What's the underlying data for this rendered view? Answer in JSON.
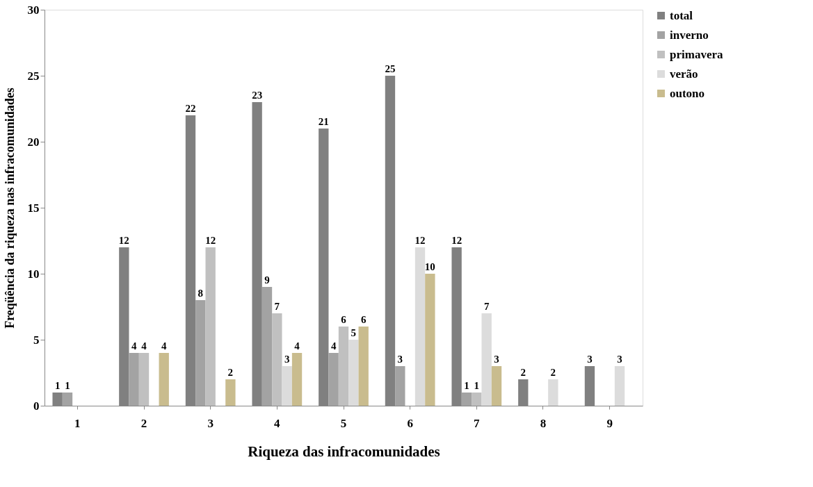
{
  "chart_data": {
    "type": "bar",
    "xlabel": "Riqueza das infracomunidades",
    "ylabel": "Freqüência da riqueza nas infracomunidades",
    "categories": [
      "1",
      "2",
      "3",
      "4",
      "5",
      "6",
      "7",
      "8",
      "9"
    ],
    "series": [
      {
        "name": "total",
        "color": "#808080",
        "values": [
          1,
          12,
          22,
          23,
          21,
          25,
          12,
          2,
          3
        ]
      },
      {
        "name": "inverno",
        "color": "#a3a3a3",
        "values": [
          1,
          4,
          8,
          9,
          4,
          3,
          1,
          null,
          null
        ]
      },
      {
        "name": "primavera",
        "color": "#c0c0c0",
        "values": [
          null,
          4,
          12,
          7,
          6,
          null,
          1,
          null,
          null
        ]
      },
      {
        "name": "verão",
        "color": "#dcdcdc",
        "values": [
          null,
          null,
          null,
          3,
          5,
          12,
          7,
          2,
          3
        ]
      },
      {
        "name": "outono",
        "color": "#c9bc8e",
        "values": [
          null,
          4,
          2,
          4,
          6,
          10,
          3,
          null,
          null
        ]
      }
    ],
    "ylim": [
      0,
      30
    ],
    "yticks": [
      0,
      5,
      10,
      15,
      20,
      25,
      30
    ],
    "grid": false,
    "legend": "right",
    "data_labels": true
  }
}
